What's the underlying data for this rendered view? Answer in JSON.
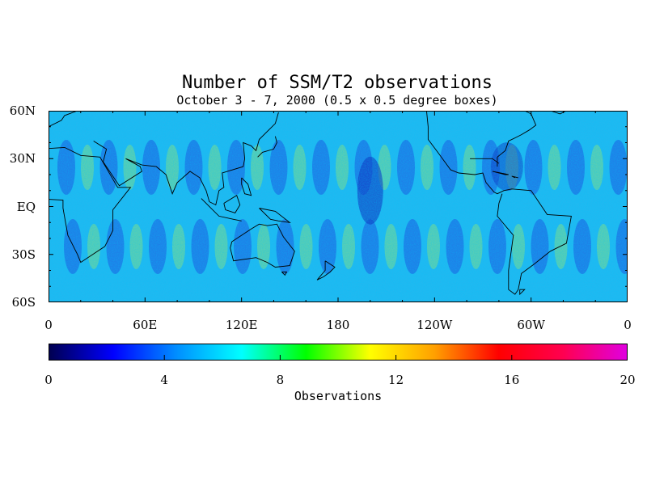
{
  "title": "Number of SSM/T2 observations",
  "subtitle": "October 3 - 7, 2000 (0.5 x 0.5 degree boxes)",
  "map": {
    "projection": "equirectangular",
    "lon_range": [
      0,
      360
    ],
    "lat_range": [
      -60,
      60
    ],
    "lat_ticks": [
      {
        "value": 60,
        "label": "60N"
      },
      {
        "value": 30,
        "label": "30N"
      },
      {
        "value": 0,
        "label": "EQ"
      },
      {
        "value": -30,
        "label": "30S"
      },
      {
        "value": -60,
        "label": "60S"
      }
    ],
    "lon_ticks": [
      {
        "value": 0,
        "label": "0"
      },
      {
        "value": 60,
        "label": "60E"
      },
      {
        "value": 120,
        "label": "120E"
      },
      {
        "value": 180,
        "label": "180"
      },
      {
        "value": 240,
        "label": "120W"
      },
      {
        "value": 300,
        "label": "60W"
      },
      {
        "value": 360,
        "label": "0"
      }
    ],
    "coastline_color": "#000000"
  },
  "colorbar": {
    "min": 0,
    "max": 20,
    "ticks": [
      {
        "value": 0,
        "label": "0"
      },
      {
        "value": 4,
        "label": "4"
      },
      {
        "value": 8,
        "label": "8"
      },
      {
        "value": 12,
        "label": "12"
      },
      {
        "value": 16,
        "label": "16"
      },
      {
        "value": 20,
        "label": "20"
      }
    ],
    "title": "Observations",
    "colors": [
      "#000050",
      "#0000ff",
      "#0090ff",
      "#00ffff",
      "#00ff00",
      "#ffff00",
      "#ffa000",
      "#ff0000",
      "#ff0050",
      "#e000e0"
    ]
  }
}
